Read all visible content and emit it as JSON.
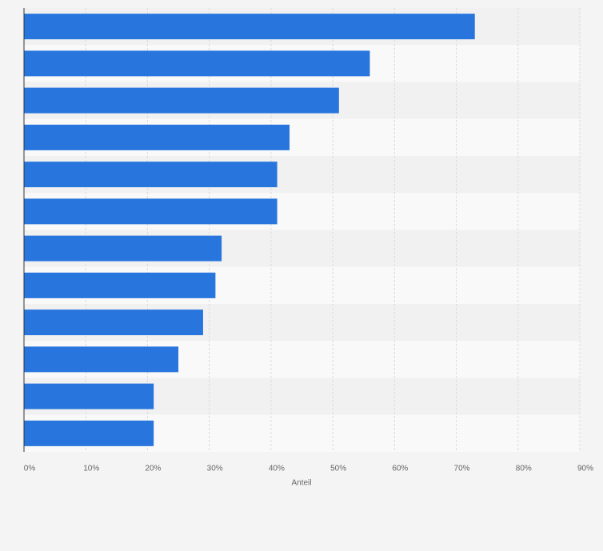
{
  "chart_data": {
    "type": "hbar",
    "categories": [
      null,
      null,
      null,
      null,
      null,
      null,
      null,
      null,
      null,
      null,
      null,
      null
    ],
    "values": [
      73,
      56,
      51,
      43,
      41,
      41,
      32,
      31,
      29,
      25,
      21,
      21
    ],
    "color": "#2876dd",
    "xlabel": "Anteil",
    "xlim": [
      0,
      90
    ],
    "xticks": [
      {
        "value": 0,
        "label": "0%"
      },
      {
        "value": 10,
        "label": "10%"
      },
      {
        "value": 20,
        "label": "20%"
      },
      {
        "value": 30,
        "label": "30%"
      },
      {
        "value": 40,
        "label": "40%"
      },
      {
        "value": 50,
        "label": "50%"
      },
      {
        "value": 60,
        "label": "60%"
      },
      {
        "value": 70,
        "label": "70%"
      },
      {
        "value": 80,
        "label": "80%"
      },
      {
        "value": 90,
        "label": "90%"
      }
    ],
    "grid": true
  }
}
